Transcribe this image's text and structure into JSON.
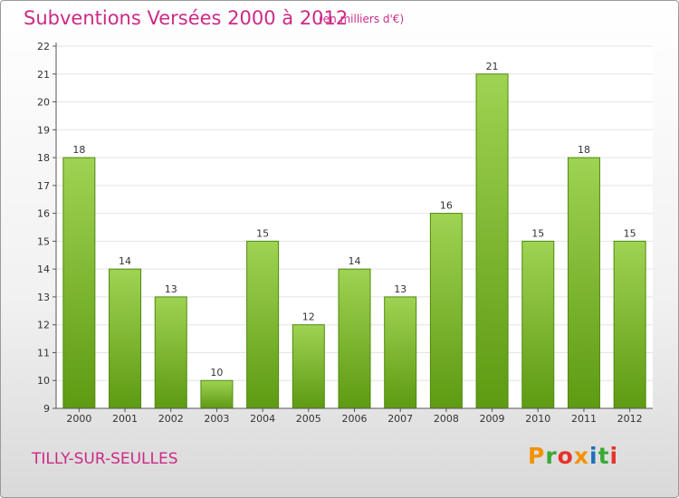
{
  "header": {
    "title": "Subventions Versées 2000 à 2012",
    "subtitle": "(en milliers d'€)"
  },
  "footer": {
    "commune": "TILLY-SUR-SEULLES",
    "logo_letters": [
      "P",
      "r",
      "o",
      "x",
      "i",
      "t",
      "i"
    ],
    "logo_colors": [
      "#f39200",
      "#3aaa35",
      "#e6332a",
      "#f39200",
      "#1d71b8",
      "#3aaa35",
      "#e6332a"
    ]
  },
  "colors": {
    "bar_top": "#9fd353",
    "bar_bottom": "#5e9a12",
    "bar_border": "#4f8a0d",
    "accent": "#cc2a86",
    "axis": "#555555",
    "grid": "#e4e4e4"
  },
  "chart_data": {
    "type": "bar",
    "title": "Subventions Versées 2000 à 2012",
    "subtitle": "(en milliers d'€)",
    "categories": [
      "2000",
      "2001",
      "2002",
      "2003",
      "2004",
      "2005",
      "2006",
      "2007",
      "2008",
      "2009",
      "2010",
      "2011",
      "2012"
    ],
    "values": [
      18,
      14,
      13,
      10,
      15,
      12,
      14,
      13,
      16,
      21,
      15,
      18,
      15
    ],
    "value_labels": [
      "18",
      "14",
      "13",
      "10",
      "15",
      "12",
      "14",
      "13",
      "16",
      "21",
      "15",
      "18",
      "15"
    ],
    "ylim": [
      9,
      22
    ],
    "yticks": [
      9,
      10,
      11,
      12,
      13,
      14,
      15,
      16,
      17,
      18,
      19,
      20,
      21,
      22
    ],
    "ytick_labels": [
      "9",
      "10",
      "11",
      "12",
      "13",
      "14",
      "15",
      "16",
      "17",
      "18",
      "19",
      "20",
      "21",
      "22"
    ],
    "grid": true,
    "xlabel": "",
    "ylabel": ""
  }
}
